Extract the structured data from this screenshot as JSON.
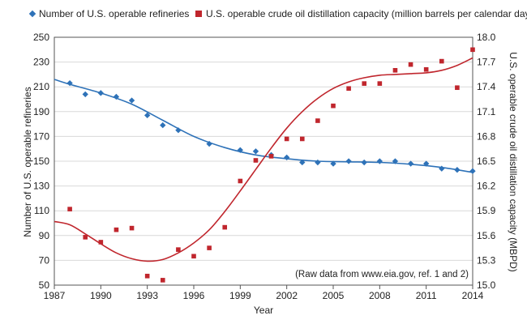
{
  "chart_data": {
    "type": "scatter",
    "xlabel": "Year",
    "ylabel_left": "Number of U.S. operable refineries",
    "ylabel_right": "U.S. operable crude oil distillation capacity (MBPD)",
    "xlim": [
      1987,
      2014
    ],
    "ylim_left": [
      50,
      250
    ],
    "ylim_right": [
      15.0,
      18.0
    ],
    "x_ticks": [
      "1987",
      "1990",
      "1993",
      "1996",
      "1999",
      "2002",
      "2005",
      "2008",
      "2011",
      "2014"
    ],
    "y_left_ticks": [
      "50",
      "70",
      "90",
      "110",
      "130",
      "150",
      "170",
      "190",
      "210",
      "230",
      "250"
    ],
    "y_right_ticks": [
      "15.0",
      "15.3",
      "15.6",
      "15.9",
      "16.2",
      "16.5",
      "16.8",
      "17.1",
      "17.4",
      "17.7",
      "18.0"
    ],
    "grid": "horizontal",
    "annotation": "(Raw data from www.eia.gov, ref. 1 and 2)",
    "legend": [
      "Number of U.S. operable refineries",
      "U.S. operable crude oil distillation capacity (million barrels per calendar day)"
    ],
    "series": [
      {
        "name": "Number of U.S. operable refineries",
        "axis": "left",
        "marker": "diamond",
        "color": "#2e72b8",
        "x": [
          1988,
          1989,
          1990,
          1991,
          1992,
          1993,
          1994,
          1995,
          1997,
          1999,
          2000,
          2001,
          2002,
          2003,
          2004,
          2005,
          2006,
          2007,
          2008,
          2009,
          2010,
          2011,
          2012,
          2013,
          2014
        ],
        "y": [
          213,
          204,
          205,
          202,
          199,
          187,
          179,
          175,
          164,
          159,
          158,
          155,
          153,
          149,
          149,
          148,
          150,
          149,
          150,
          150,
          148,
          148,
          144,
          143,
          142
        ]
      },
      {
        "name": "U.S. operable crude oil distillation capacity (million barrels per calendar day)",
        "axis": "right",
        "marker": "square",
        "color": "#c0262d",
        "x": [
          1988,
          1989,
          1990,
          1991,
          1992,
          1993,
          1994,
          1995,
          1996,
          1997,
          1998,
          1999,
          2000,
          2001,
          2002,
          2003,
          2004,
          2005,
          2006,
          2007,
          2008,
          2009,
          2010,
          2011,
          2012,
          2013,
          2014
        ],
        "y": [
          15.92,
          15.58,
          15.52,
          15.67,
          15.69,
          15.11,
          15.06,
          15.43,
          15.35,
          15.45,
          15.7,
          16.26,
          16.51,
          16.56,
          16.77,
          16.77,
          16.99,
          17.17,
          17.38,
          17.44,
          17.44,
          17.6,
          17.67,
          17.61,
          17.71,
          17.39,
          17.85
        ]
      }
    ],
    "trend_left": {
      "x": [
        1987,
        1988,
        1990,
        1992,
        1994,
        1996,
        1998,
        2000,
        2002,
        2004,
        2006,
        2008,
        2010,
        2012,
        2014
      ],
      "y": [
        216,
        212,
        205,
        196,
        183,
        170,
        161,
        155,
        152,
        150,
        149.5,
        149,
        147.5,
        145,
        141
      ]
    },
    "trend_right": {
      "x": [
        1987,
        1988,
        1989,
        1990,
        1991,
        1992,
        1993,
        1994,
        1995,
        1996,
        1997,
        1998,
        1999,
        2000,
        2001,
        2002,
        2003,
        2004,
        2005,
        2006,
        2007,
        2008,
        2009,
        2010,
        2011,
        2012,
        2013,
        2014
      ],
      "y": [
        15.77,
        15.73,
        15.62,
        15.5,
        15.39,
        15.32,
        15.29,
        15.31,
        15.39,
        15.51,
        15.67,
        15.89,
        16.14,
        16.4,
        16.66,
        16.9,
        17.1,
        17.26,
        17.38,
        17.46,
        17.51,
        17.54,
        17.55,
        17.56,
        17.57,
        17.6,
        17.66,
        17.75
      ]
    }
  },
  "colors": {
    "refineries": "#2e72b8",
    "capacity": "#c0262d",
    "grid": "#d9d9d9",
    "axis": "#555555"
  }
}
